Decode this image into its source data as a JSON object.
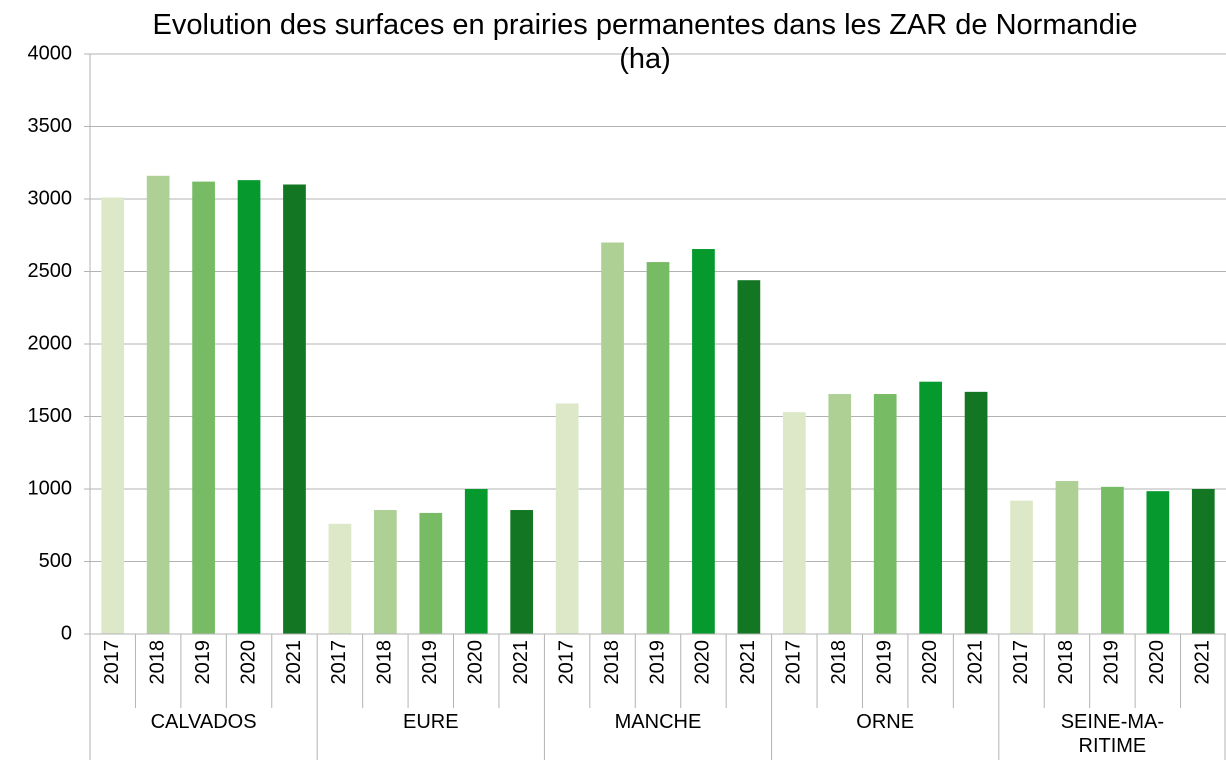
{
  "chart_data": {
    "type": "bar",
    "title": "Evolution des surfaces en prairies permanentes dans les ZAR de Normandie (ha)",
    "categories": [
      "CALVADOS",
      "EURE",
      "MANCHE",
      "ORNE",
      "SEINE-MA-\nRITIME"
    ],
    "series": [
      {
        "name": "2017",
        "color": "#dde8c9",
        "values": [
          3010,
          760,
          1590,
          1530,
          920
        ]
      },
      {
        "name": "2018",
        "color": "#afd095",
        "values": [
          3160,
          855,
          2700,
          1655,
          1055
        ]
      },
      {
        "name": "2019",
        "color": "#77bc65",
        "values": [
          3120,
          835,
          2565,
          1655,
          1015
        ]
      },
      {
        "name": "2020",
        "color": "#069a2e",
        "values": [
          3130,
          1000,
          2655,
          1740,
          985
        ]
      },
      {
        "name": "2021",
        "color": "#127622",
        "values": [
          3100,
          855,
          2440,
          1670,
          1000
        ]
      }
    ],
    "ylim": [
      0,
      4000
    ],
    "yticks": [
      0,
      500,
      1000,
      1500,
      2000,
      2500,
      3000,
      3500,
      4000
    ],
    "grid": true
  }
}
